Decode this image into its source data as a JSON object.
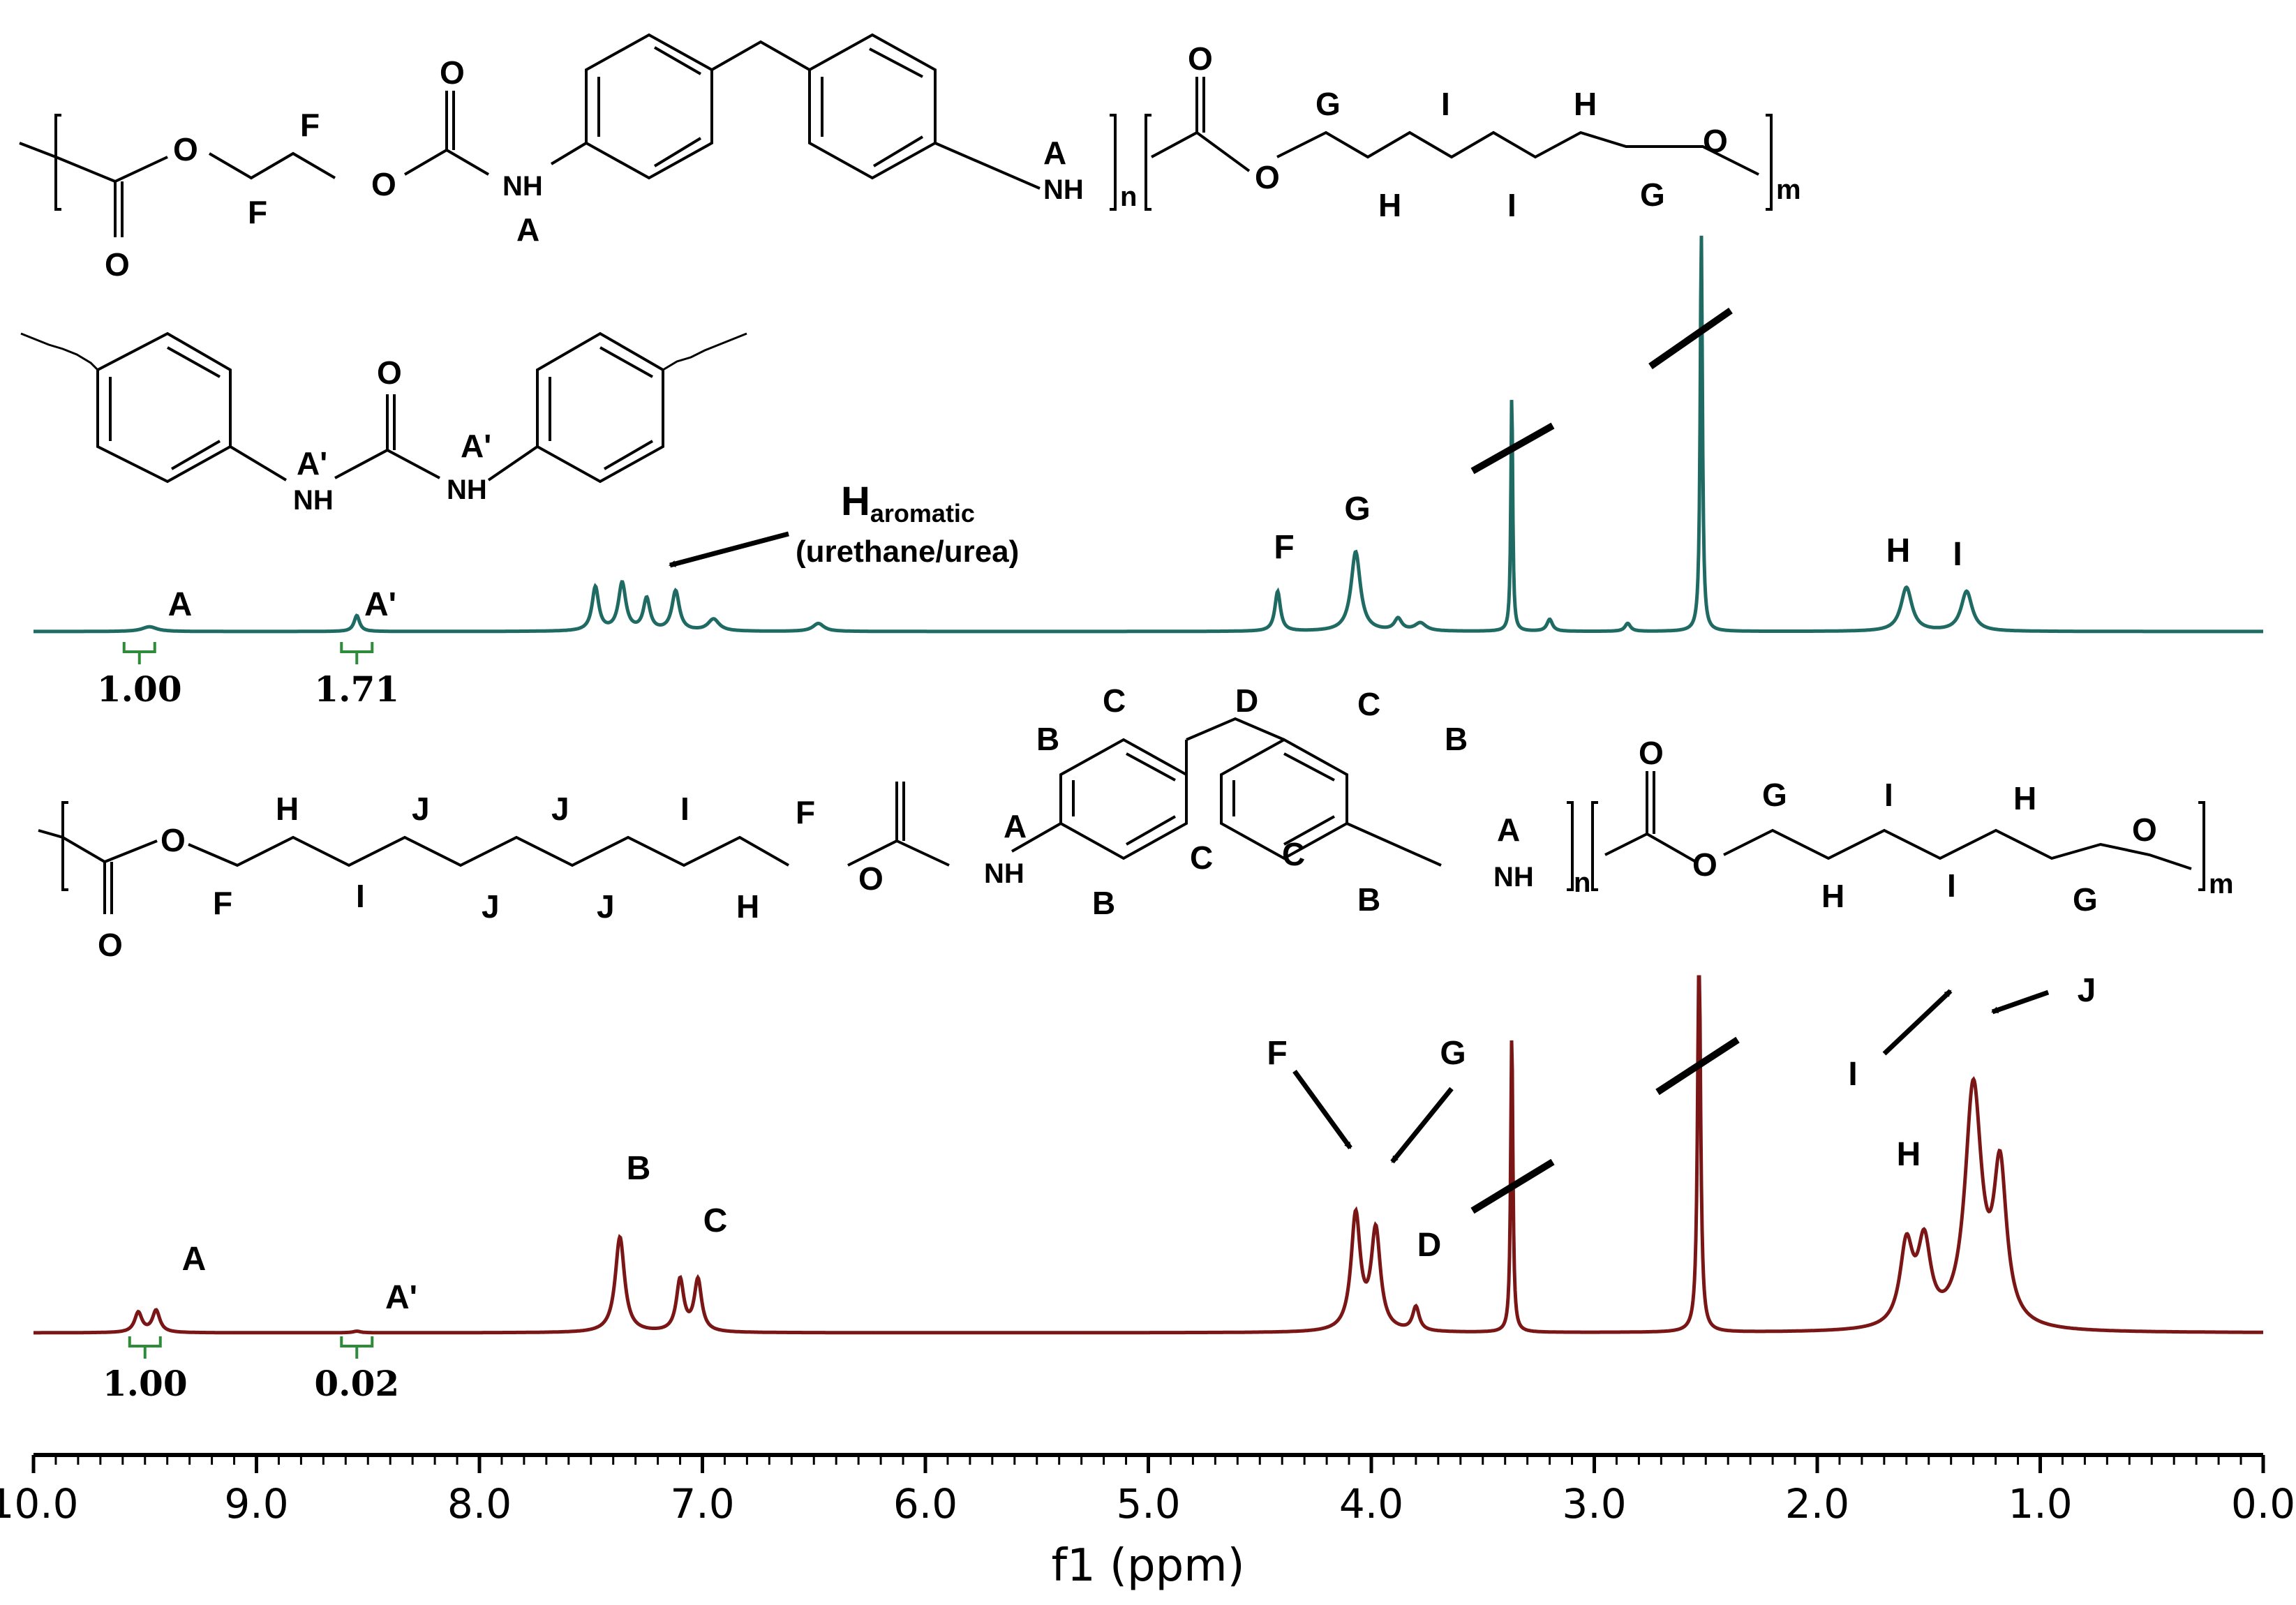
{
  "chart_data": {
    "type": "line",
    "xlabel": "f1 (ppm)",
    "xlim": [
      10.0,
      0.0
    ],
    "reversed_x": true,
    "ticks": [
      "10.0",
      "9.0",
      "8.0",
      "7.0",
      "6.0",
      "5.0",
      "4.0",
      "3.0",
      "2.0",
      "1.0",
      "0.0"
    ],
    "series": [
      {
        "key": "top",
        "color": "#1f6b63",
        "peaks": [
          {
            "ppm": 9.48,
            "height": 0.012,
            "width": 0.04
          },
          {
            "ppm": 8.55,
            "height": 0.04,
            "width": 0.015
          },
          {
            "ppm": 7.48,
            "height": 0.11,
            "width": 0.018
          },
          {
            "ppm": 7.36,
            "height": 0.12,
            "width": 0.02
          },
          {
            "ppm": 7.25,
            "height": 0.08,
            "width": 0.018
          },
          {
            "ppm": 7.12,
            "height": 0.1,
            "width": 0.02
          },
          {
            "ppm": 6.95,
            "height": 0.03,
            "width": 0.03
          },
          {
            "ppm": 6.48,
            "height": 0.02,
            "width": 0.03
          },
          {
            "ppm": 4.42,
            "height": 0.1,
            "width": 0.015
          },
          {
            "ppm": 4.07,
            "height": 0.2,
            "width": 0.025
          },
          {
            "ppm": 3.88,
            "height": 0.03,
            "width": 0.02
          },
          {
            "ppm": 3.78,
            "height": 0.02,
            "width": 0.03
          },
          {
            "ppm": 3.37,
            "height": 0.6,
            "width": 0.005
          },
          {
            "ppm": 3.2,
            "height": 0.03,
            "width": 0.015
          },
          {
            "ppm": 2.85,
            "height": 0.02,
            "width": 0.015
          },
          {
            "ppm": 2.52,
            "height": 1.0,
            "width": 0.006
          },
          {
            "ppm": 1.6,
            "height": 0.11,
            "width": 0.03
          },
          {
            "ppm": 1.33,
            "height": 0.1,
            "width": 0.03
          }
        ],
        "peak_labels": [
          {
            "text": "A",
            "ppm": 9.48
          },
          {
            "text": "A'",
            "ppm": 8.55
          },
          {
            "text": "F",
            "ppm": 4.42
          },
          {
            "text": "G",
            "ppm": 4.07
          },
          {
            "text": "H",
            "ppm": 1.6
          },
          {
            "text": "I",
            "ppm": 1.33
          }
        ],
        "integrals": [
          {
            "ppm": 9.5,
            "value": "1.00"
          },
          {
            "ppm": 8.55,
            "value": "1.71"
          }
        ],
        "annotation": {
          "main": "H",
          "sub": "aromatic",
          "line2": "(urethane/urea)"
        }
      },
      {
        "key": "bottom",
        "color": "#7a1616",
        "peaks": [
          {
            "ppm": 9.53,
            "height": 0.05,
            "width": 0.02
          },
          {
            "ppm": 9.45,
            "height": 0.055,
            "width": 0.02
          },
          {
            "ppm": 8.55,
            "height": 0.004,
            "width": 0.02
          },
          {
            "ppm": 7.37,
            "height": 0.24,
            "width": 0.025
          },
          {
            "ppm": 7.1,
            "height": 0.13,
            "width": 0.02
          },
          {
            "ppm": 7.02,
            "height": 0.13,
            "width": 0.02
          },
          {
            "ppm": 4.07,
            "height": 0.29,
            "width": 0.025
          },
          {
            "ppm": 3.98,
            "height": 0.25,
            "width": 0.025
          },
          {
            "ppm": 3.8,
            "height": 0.06,
            "width": 0.018
          },
          {
            "ppm": 3.37,
            "height": 0.75,
            "width": 0.006
          },
          {
            "ppm": 2.53,
            "height": 1.0,
            "width": 0.008
          },
          {
            "ppm": 1.6,
            "height": 0.2,
            "width": 0.035
          },
          {
            "ppm": 1.52,
            "height": 0.2,
            "width": 0.035
          },
          {
            "ppm": 1.3,
            "height": 0.6,
            "width": 0.045
          },
          {
            "ppm": 1.18,
            "height": 0.38,
            "width": 0.035
          }
        ],
        "peak_labels": [
          {
            "text": "A",
            "ppm": 9.49
          },
          {
            "text": "A'",
            "ppm": 8.55
          },
          {
            "text": "B",
            "ppm": 7.37
          },
          {
            "text": "C",
            "ppm": 7.06
          },
          {
            "text": "D",
            "ppm": 3.8
          },
          {
            "text": "H",
            "ppm": 1.55
          },
          {
            "text": "F",
            "ppm": 4.07
          },
          {
            "text": "G",
            "ppm": 3.98
          },
          {
            "text": "I",
            "ppm": 1.3
          },
          {
            "text": "J",
            "ppm": 1.18
          }
        ],
        "integrals": [
          {
            "ppm": 9.5,
            "value": "1.00"
          },
          {
            "ppm": 8.55,
            "value": "0.02"
          }
        ]
      }
    ]
  },
  "structures": {
    "top_polymer": {
      "atom_labels": [
        "O",
        "F",
        "F",
        "O",
        "O",
        "NH",
        "A",
        "NH",
        "A",
        "O",
        "O",
        "G",
        "I",
        "H",
        "O",
        "H",
        "I",
        "G"
      ],
      "subscripts": [
        "n",
        "m"
      ]
    },
    "urea": {
      "atom_labels": [
        "O",
        "A'",
        "NH",
        "A'",
        "NH"
      ]
    },
    "bottom_polymer": {
      "atom_labels": [
        "O",
        "H",
        "J",
        "J",
        "I",
        "F",
        "F",
        "I",
        "J",
        "J",
        "H",
        "O",
        "O",
        "A",
        "NH",
        "B",
        "C",
        "D",
        "C",
        "B",
        "C",
        "C",
        "B",
        "B",
        "A",
        "NH",
        "O",
        "G",
        "I",
        "H",
        "O",
        "H",
        "I",
        "G"
      ],
      "subscripts": [
        "n",
        "m"
      ]
    }
  }
}
